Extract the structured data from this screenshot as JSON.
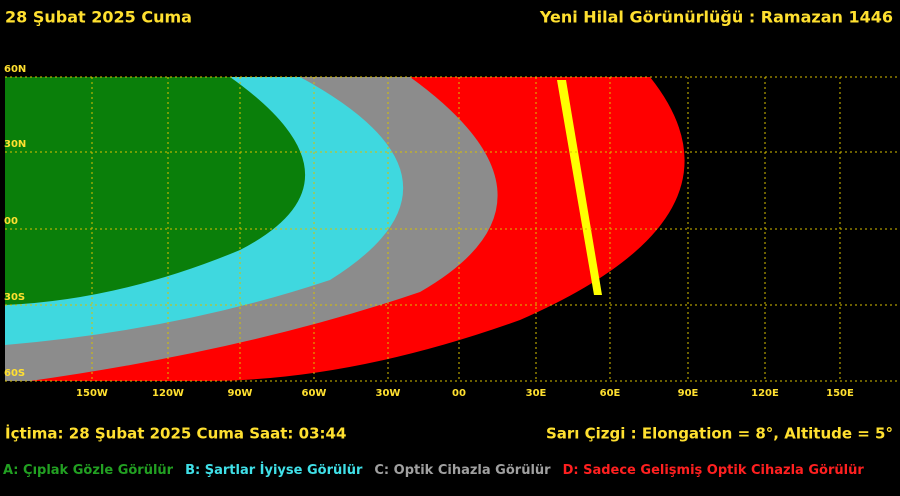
{
  "header": {
    "date": "28 Şubat 2025 Cuma",
    "title": "Yeni Hilal Görünürlüğü : Ramazan 1446"
  },
  "map": {
    "lat_labels": [
      "60N",
      "30N",
      "00",
      "30S",
      "60S"
    ],
    "lon_labels": [
      "150W",
      "120W",
      "90W",
      "60W",
      "30W",
      "00",
      "30E",
      "60E",
      "90E",
      "120E",
      "150E"
    ]
  },
  "info": {
    "conjunction": "İçtima: 28 Şubat 2025 Cuma Saat: 03:44",
    "yellow_line": "Sarı Çizgi : Elongation = 8°, Altitude = 5°"
  },
  "legend": [
    {
      "label": "A: Çıplak Gözle Görülür",
      "color": "#22a022"
    },
    {
      "label": "B: Şartlar İyiyse Görülür",
      "color": "#40e0e8"
    },
    {
      "label": "C: Optik Cihazla Görülür",
      "color": "#a0a0a0"
    },
    {
      "label": "D: Sadece Gelişmiş Optik Cihazla Görülür",
      "color": "#ff2020"
    }
  ]
}
